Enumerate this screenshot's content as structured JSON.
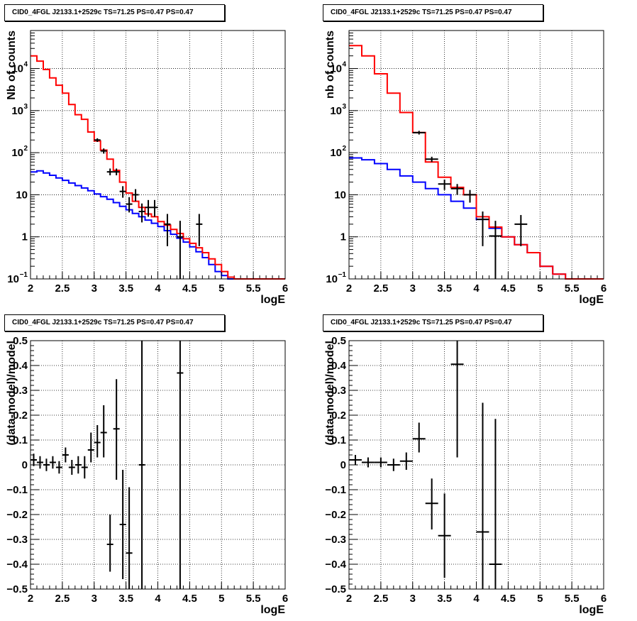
{
  "panels": [
    {
      "title": "CID0_4FGL J2133.1+2529c TS=71.25 PS=0.47 PS=0.47",
      "chart_data": {
        "type": "histogram",
        "xlabel": "logE",
        "ylabel": "Nb of counts",
        "log_y": true,
        "xlim": [
          2,
          6
        ],
        "ylim": [
          0.1,
          80000
        ],
        "xticks": [
          "2",
          "2.5",
          "3",
          "3.5",
          "4",
          "4.5",
          "5",
          "5.5",
          "6"
        ],
        "yticks": [
          {
            "v": 0.1,
            "label": "10",
            "exp": "−1"
          },
          {
            "v": 1,
            "label": "1",
            "exp": ""
          },
          {
            "v": 10,
            "label": "10",
            "exp": ""
          },
          {
            "v": 100,
            "label": "10",
            "exp": "2"
          },
          {
            "v": 1000,
            "label": "10",
            "exp": "3"
          },
          {
            "v": 10000,
            "label": "10",
            "exp": "4"
          }
        ],
        "grid": true,
        "bin_edges": [
          2,
          2.1,
          2.2,
          2.3,
          2.4,
          2.5,
          2.6,
          2.7,
          2.8,
          2.9,
          3,
          3.1,
          3.2,
          3.3,
          3.4,
          3.5,
          3.6,
          3.7,
          3.8,
          3.9,
          4,
          4.1,
          4.2,
          4.3,
          4.4,
          4.5,
          4.6,
          4.7,
          4.8,
          4.9,
          5,
          5.1,
          5.2,
          5.3,
          5.4,
          5.5,
          5.6,
          5.7,
          5.8,
          5.9,
          6
        ],
        "series": [
          {
            "color": "#0000ff",
            "values": [
              35,
              37,
              33,
              29,
              25,
              22,
              19,
              16.5,
              14.5,
              12.5,
              10.5,
              9,
              7.8,
              6.5,
              5.3,
              4.4,
              3.6,
              3,
              2.5,
              2.1,
              1.75,
              1.4,
              1.15,
              0.93,
              0.75,
              0.58,
              0.44,
              0.32,
              0.22,
              0.15,
              0.12,
              0.1,
              0.1,
              0.1,
              0.1,
              0.1,
              0.1,
              0.1,
              0.1,
              0.1
            ]
          },
          {
            "color": "#ff0000",
            "values": [
              20000,
              15000,
              9500,
              6000,
              4000,
              2600,
              1400,
              800,
              620,
              310,
              190,
              115,
              70,
              38,
              20,
              11,
              7,
              5,
              3.5,
              3,
              2.3,
              1.9,
              1.5,
              1.2,
              0.9,
              0.7,
              0.55,
              0.42,
              0.3,
              0.22,
              0.15,
              0.11,
              0.1,
              0.1,
              0.1,
              0.1,
              0.1,
              0.1,
              0.1,
              0.1
            ]
          }
        ],
        "points": [
          {
            "x": 3.05,
            "y": 200,
            "ex": 0.05,
            "lo": 180,
            "hi": 220
          },
          {
            "x": 3.15,
            "y": 110,
            "ex": 0.05,
            "lo": 95,
            "hi": 126
          },
          {
            "x": 3.25,
            "y": 35,
            "ex": 0.05,
            "lo": 29,
            "hi": 42
          },
          {
            "x": 3.35,
            "y": 35,
            "ex": 0.05,
            "lo": 29,
            "hi": 42
          },
          {
            "x": 3.45,
            "y": 12,
            "ex": 0.05,
            "lo": 8.5,
            "hi": 16
          },
          {
            "x": 3.55,
            "y": 6,
            "ex": 0.05,
            "lo": 3.8,
            "hi": 8.8
          },
          {
            "x": 3.65,
            "y": 10,
            "ex": 0.05,
            "lo": 7,
            "hi": 13.6
          },
          {
            "x": 3.75,
            "y": 4,
            "ex": 0.05,
            "lo": 2.2,
            "hi": 6.2
          },
          {
            "x": 3.85,
            "y": 5,
            "ex": 0.05,
            "lo": 3,
            "hi": 7.5
          },
          {
            "x": 3.95,
            "y": 5,
            "ex": 0.05,
            "lo": 3,
            "hi": 7.5
          },
          {
            "x": 4.15,
            "y": 2,
            "ex": 0.05,
            "lo": 0.6,
            "hi": 3.5
          },
          {
            "x": 4.35,
            "y": 1,
            "ex": 0.05,
            "lo": 0.1,
            "hi": 2.4
          },
          {
            "x": 4.65,
            "y": 2,
            "ex": 0.05,
            "lo": 0.6,
            "hi": 3.5
          }
        ]
      }
    },
    {
      "title": "CID0_4FGL J2133.1+2529c TS=71.25 PS=0.47 PS=0.47",
      "chart_data": {
        "type": "histogram",
        "xlabel": "logE",
        "ylabel": "nb of counts",
        "log_y": true,
        "xlim": [
          2,
          6
        ],
        "ylim": [
          0.1,
          80000
        ],
        "xticks": [
          "2",
          "2.5",
          "3",
          "3.5",
          "4",
          "4.5",
          "5",
          "5.5",
          "6"
        ],
        "yticks": [
          {
            "v": 0.1,
            "label": "10",
            "exp": "−1"
          },
          {
            "v": 1,
            "label": "1",
            "exp": ""
          },
          {
            "v": 10,
            "label": "10",
            "exp": ""
          },
          {
            "v": 100,
            "label": "10",
            "exp": "2"
          },
          {
            "v": 1000,
            "label": "10",
            "exp": "3"
          },
          {
            "v": 10000,
            "label": "10",
            "exp": "4"
          }
        ],
        "grid": true,
        "bin_edges": [
          2,
          2.2,
          2.4,
          2.6,
          2.8,
          3,
          3.2,
          3.4,
          3.6,
          3.8,
          4,
          4.2,
          4.4,
          4.6,
          4.8,
          5,
          5.2,
          5.4,
          5.6,
          5.8,
          6
        ],
        "series": [
          {
            "color": "#0000ff",
            "values": [
              75,
              68,
              55,
              40,
              28,
              20,
              14,
              10,
              7,
              4.8,
              2.6,
              1.6,
              1.0,
              0.65,
              0.42,
              0.2,
              0.13,
              0.1,
              0.1,
              0.1
            ]
          },
          {
            "color": "#ff0000",
            "values": [
              35000,
              20000,
              7500,
              2600,
              900,
              300,
              60,
              26,
              15,
              10,
              3,
              1.7,
              1.0,
              0.65,
              0.42,
              0.2,
              0.13,
              0.1,
              0.1,
              0.1
            ]
          }
        ],
        "points": [
          {
            "x": 3.1,
            "y": 300,
            "ex": 0.1,
            "lo": 270,
            "hi": 330
          },
          {
            "x": 3.3,
            "y": 70,
            "ex": 0.1,
            "lo": 60,
            "hi": 80
          },
          {
            "x": 3.5,
            "y": 18,
            "ex": 0.1,
            "lo": 13,
            "hi": 23
          },
          {
            "x": 3.7,
            "y": 14,
            "ex": 0.1,
            "lo": 10,
            "hi": 18
          },
          {
            "x": 3.9,
            "y": 10,
            "ex": 0.1,
            "lo": 6.5,
            "hi": 13
          },
          {
            "x": 4.1,
            "y": 2.6,
            "ex": 0.1,
            "lo": 0.6,
            "hi": 4
          },
          {
            "x": 4.3,
            "y": 1.05,
            "ex": 0.1,
            "lo": 0.1,
            "hi": 2.4
          },
          {
            "x": 4.7,
            "y": 2,
            "ex": 0.1,
            "lo": 0.6,
            "hi": 3.3
          }
        ]
      }
    },
    {
      "title": "CID0_4FGL J2133.1+2529c TS=71.25 PS=0.47 PS=0.47",
      "chart_data": {
        "type": "scatter",
        "xlabel": "logE",
        "ylabel": "(data-model)/model",
        "log_y": false,
        "xlim": [
          2,
          6
        ],
        "ylim": [
          -0.5,
          0.5
        ],
        "xticks": [
          "2",
          "2.5",
          "3",
          "3.5",
          "4",
          "4.5",
          "5",
          "5.5",
          "6"
        ],
        "yticks": [
          {
            "v": -0.5,
            "label": "−0.5"
          },
          {
            "v": -0.4,
            "label": "−0.4"
          },
          {
            "v": -0.3,
            "label": "−0.3"
          },
          {
            "v": -0.2,
            "label": "−0.2"
          },
          {
            "v": -0.1,
            "label": "−0.1"
          },
          {
            "v": 0,
            "label": "0"
          },
          {
            "v": 0.1,
            "label": "0.1"
          },
          {
            "v": 0.2,
            "label": "0.2"
          },
          {
            "v": 0.3,
            "label": "0.3"
          },
          {
            "v": 0.4,
            "label": "0.4"
          },
          {
            "v": 0.5,
            "label": "0.5"
          }
        ],
        "grid": true,
        "points": [
          {
            "x": 2.05,
            "y": 0.02,
            "ex": 0.05,
            "lo": -0.005,
            "hi": 0.045
          },
          {
            "x": 2.15,
            "y": 0.01,
            "ex": 0.05,
            "lo": -0.015,
            "hi": 0.035
          },
          {
            "x": 2.25,
            "y": 0.0,
            "ex": 0.05,
            "lo": -0.025,
            "hi": 0.025
          },
          {
            "x": 2.35,
            "y": 0.01,
            "ex": 0.05,
            "lo": -0.015,
            "hi": 0.035
          },
          {
            "x": 2.45,
            "y": -0.01,
            "ex": 0.05,
            "lo": -0.035,
            "hi": 0.015
          },
          {
            "x": 2.55,
            "y": 0.04,
            "ex": 0.05,
            "lo": 0.01,
            "hi": 0.07
          },
          {
            "x": 2.65,
            "y": -0.01,
            "ex": 0.05,
            "lo": -0.04,
            "hi": 0.02
          },
          {
            "x": 2.75,
            "y": 0.0,
            "ex": 0.05,
            "lo": -0.035,
            "hi": 0.035
          },
          {
            "x": 2.85,
            "y": -0.01,
            "ex": 0.05,
            "lo": -0.055,
            "hi": 0.035
          },
          {
            "x": 2.95,
            "y": 0.06,
            "ex": 0.05,
            "lo": 0.01,
            "hi": 0.13
          },
          {
            "x": 3.05,
            "y": 0.09,
            "ex": 0.05,
            "lo": 0.03,
            "hi": 0.16
          },
          {
            "x": 3.15,
            "y": 0.13,
            "ex": 0.05,
            "lo": 0.03,
            "hi": 0.24
          },
          {
            "x": 3.25,
            "y": -0.32,
            "ex": 0.05,
            "lo": -0.43,
            "hi": -0.2
          },
          {
            "x": 3.35,
            "y": 0.145,
            "ex": 0.05,
            "lo": -0.06,
            "hi": 0.345
          },
          {
            "x": 3.45,
            "y": -0.24,
            "ex": 0.05,
            "lo": -0.46,
            "hi": -0.02
          },
          {
            "x": 3.55,
            "y": -0.355,
            "ex": 0.05,
            "lo": -0.5,
            "hi": -0.09
          },
          {
            "x": 3.75,
            "y": 0.0,
            "ex": 0.05,
            "lo": -0.5,
            "hi": 0.5
          },
          {
            "x": 4.35,
            "y": 0.37,
            "ex": 0.05,
            "lo": -0.5,
            "hi": 0.5
          }
        ]
      }
    },
    {
      "title": "CID0_4FGL J2133.1+2529c TS=71.25 PS=0.47 PS=0.47",
      "chart_data": {
        "type": "scatter",
        "xlabel": "logE",
        "ylabel": "(data-model)/model",
        "log_y": false,
        "xlim": [
          2,
          6
        ],
        "ylim": [
          -0.5,
          0.5
        ],
        "xticks": [
          "2",
          "2.5",
          "3",
          "3.5",
          "4",
          "4.5",
          "5",
          "5.5",
          "6"
        ],
        "yticks": [
          {
            "v": -0.5,
            "label": "−0.5"
          },
          {
            "v": -0.4,
            "label": "−0.4"
          },
          {
            "v": -0.3,
            "label": "−0.3"
          },
          {
            "v": -0.2,
            "label": "−0.2"
          },
          {
            "v": -0.1,
            "label": "−0.1"
          },
          {
            "v": 0,
            "label": "0"
          },
          {
            "v": 0.1,
            "label": "0.1"
          },
          {
            "v": 0.2,
            "label": "0.2"
          },
          {
            "v": 0.3,
            "label": "0.3"
          },
          {
            "v": 0.4,
            "label": "0.4"
          },
          {
            "v": 0.5,
            "label": "0.5"
          }
        ],
        "grid": true,
        "points": [
          {
            "x": 2.1,
            "y": 0.02,
            "ex": 0.1,
            "lo": 0.0,
            "hi": 0.04
          },
          {
            "x": 2.3,
            "y": 0.01,
            "ex": 0.1,
            "lo": -0.01,
            "hi": 0.03
          },
          {
            "x": 2.5,
            "y": 0.01,
            "ex": 0.1,
            "lo": -0.01,
            "hi": 0.03
          },
          {
            "x": 2.7,
            "y": 0.0,
            "ex": 0.1,
            "lo": -0.025,
            "hi": 0.025
          },
          {
            "x": 2.9,
            "y": 0.015,
            "ex": 0.1,
            "lo": -0.02,
            "hi": 0.05
          },
          {
            "x": 3.1,
            "y": 0.105,
            "ex": 0.1,
            "lo": 0.05,
            "hi": 0.17
          },
          {
            "x": 3.3,
            "y": -0.155,
            "ex": 0.1,
            "lo": -0.26,
            "hi": -0.055
          },
          {
            "x": 3.5,
            "y": -0.285,
            "ex": 0.1,
            "lo": -0.455,
            "hi": -0.115
          },
          {
            "x": 3.7,
            "y": 0.405,
            "ex": 0.1,
            "lo": 0.03,
            "hi": 0.5
          },
          {
            "x": 4.1,
            "y": -0.27,
            "ex": 0.1,
            "lo": -0.5,
            "hi": 0.25
          },
          {
            "x": 4.3,
            "y": -0.4,
            "ex": 0.1,
            "lo": -0.5,
            "hi": 0.185
          }
        ]
      }
    }
  ]
}
